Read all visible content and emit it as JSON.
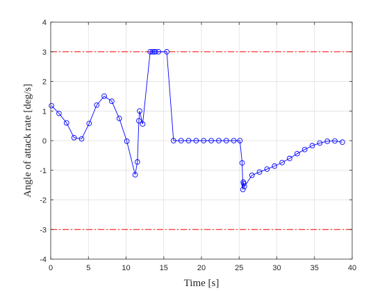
{
  "chart_data": {
    "type": "line",
    "xlabel": "Time [s]",
    "ylabel": "Angle of attack rate [deg/s]",
    "xlim": [
      0,
      40
    ],
    "ylim": [
      -4,
      4
    ],
    "xticks": [
      0,
      5,
      10,
      15,
      20,
      25,
      30,
      35,
      40
    ],
    "yticks": [
      -4,
      -3,
      -2,
      -1,
      0,
      1,
      2,
      3,
      4
    ],
    "grid": true,
    "legend": "none",
    "colors": {
      "series": "#0000ff",
      "limit": "#ff0000",
      "grid": "#dcdcdc",
      "axes": "#262626"
    },
    "limit_lines": [
      {
        "y": 3,
        "style": "dash-dot"
      },
      {
        "y": -3,
        "style": "dash-dot"
      }
    ],
    "series": [
      {
        "marker": "circle",
        "x": [
          0.1,
          1.1,
          2.1,
          3.1,
          4.1,
          5.1,
          6.1,
          7.1,
          8.1,
          9.1,
          10.1,
          11.2,
          11.5,
          11.7,
          11.8,
          12.2,
          13.2,
          13.5,
          13.7,
          13.9,
          14.3,
          15.4,
          16.3,
          17.3,
          18.3,
          19.3,
          20.3,
          21.3,
          22.3,
          23.3,
          24.3,
          25.1,
          25.4,
          25.5,
          25.55,
          25.6,
          25.7,
          26.7,
          27.7,
          28.7,
          29.7,
          30.7,
          31.7,
          32.7,
          33.7,
          34.7,
          35.7,
          36.7,
          37.7,
          38.7
        ],
        "y": [
          1.18,
          0.92,
          0.6,
          0.1,
          0.06,
          0.58,
          1.2,
          1.5,
          1.33,
          0.75,
          -0.02,
          -1.15,
          -0.72,
          0.67,
          1.0,
          0.56,
          3.0,
          3.0,
          3.0,
          3.0,
          3.0,
          3.0,
          0.0,
          0.0,
          0.0,
          0.0,
          0.0,
          0.0,
          0.0,
          0.0,
          0.0,
          0.0,
          -0.75,
          -1.65,
          -1.4,
          -1.45,
          -1.55,
          -1.17,
          -1.06,
          -0.96,
          -0.86,
          -0.74,
          -0.6,
          -0.44,
          -0.3,
          -0.17,
          -0.08,
          -0.02,
          -0.01,
          -0.05
        ]
      }
    ]
  }
}
